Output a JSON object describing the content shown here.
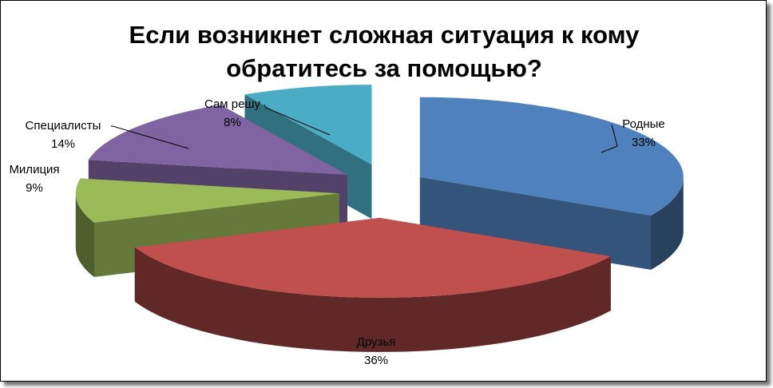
{
  "chart_data": {
    "type": "pie3d",
    "title": "Если возникнет сложная ситуация к кому обратитесь за помощью?",
    "categories": [
      "Родные",
      "Друзья",
      "Милиция",
      "Специалисты",
      "Сам решу"
    ],
    "values": [
      33,
      36,
      9,
      14,
      8
    ],
    "value_labels": [
      "33%",
      "36%",
      "9%",
      "14%",
      "8%"
    ],
    "colors": [
      "#4f81bd",
      "#c0504d",
      "#9bbb59",
      "#8064a2",
      "#4bacc6"
    ]
  }
}
